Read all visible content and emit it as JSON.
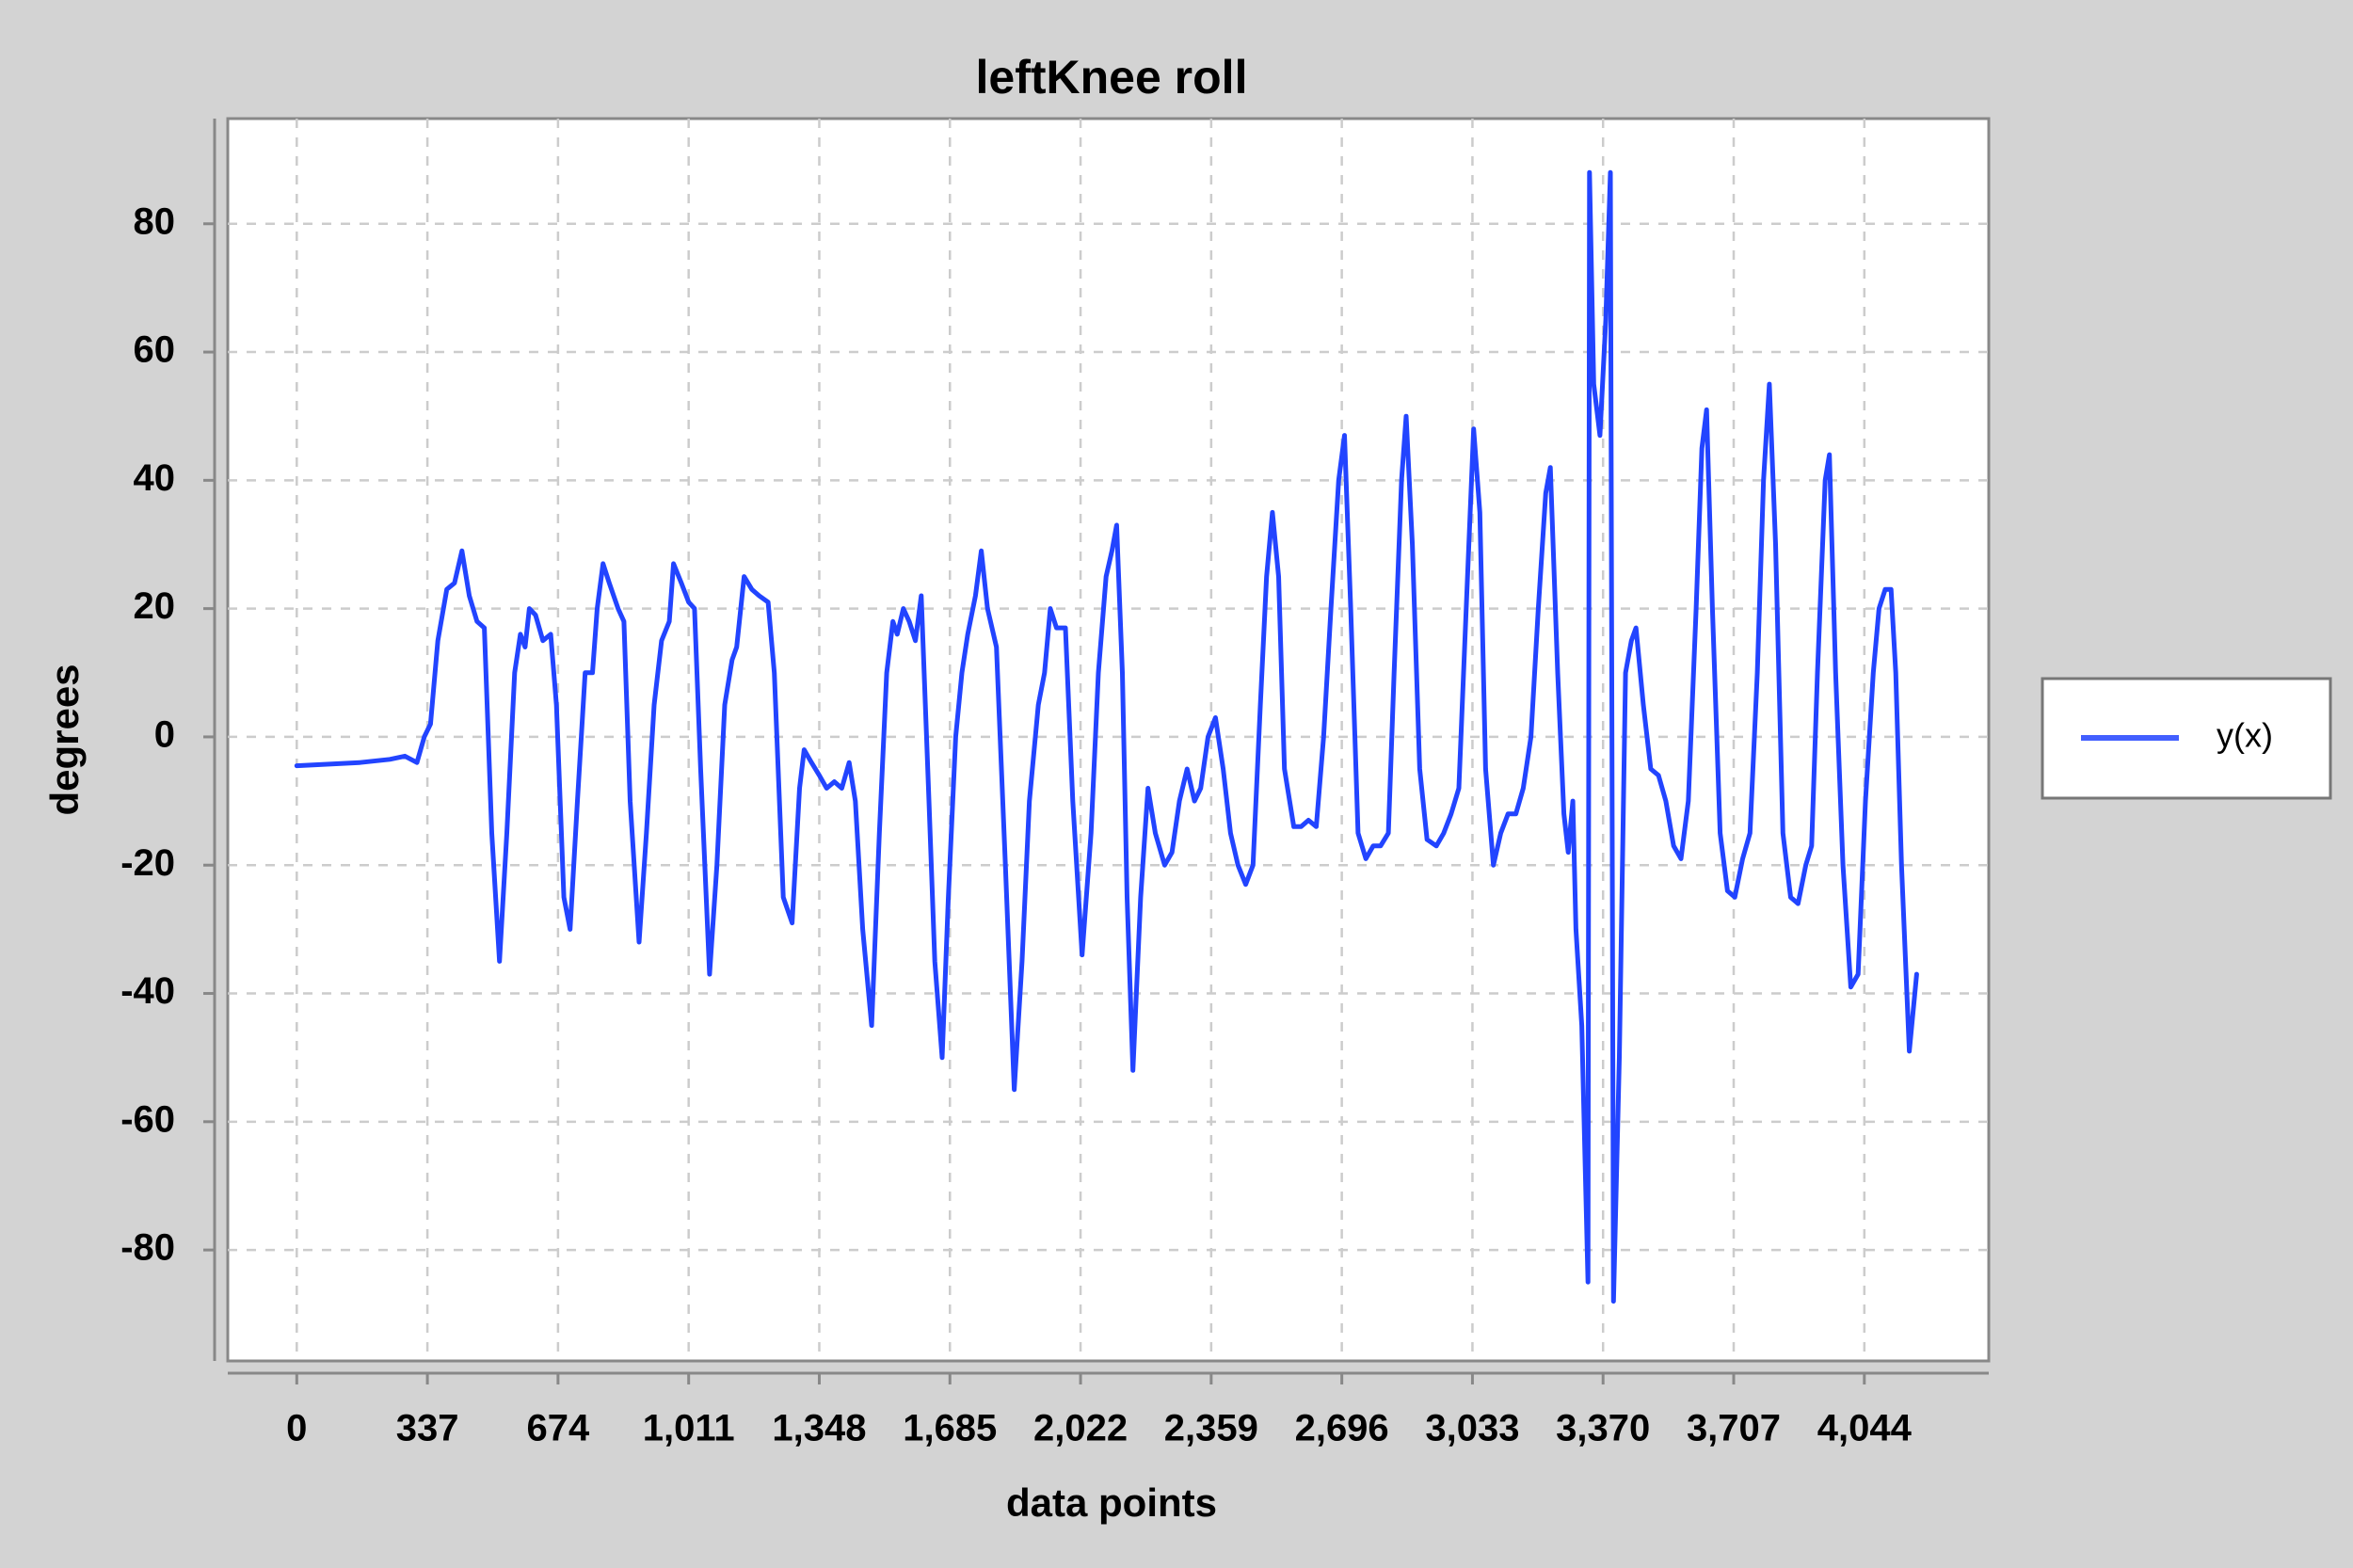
{
  "chart_data": {
    "type": "line",
    "title": "leftKnee roll",
    "x_label": "data points",
    "y_label": "degrees",
    "xlim": [
      -178,
      4365
    ],
    "ylim": [
      -97.3,
      96.4
    ],
    "xticks": [
      0,
      337,
      674,
      {
        "value": 1011,
        "label": "1,011"
      },
      {
        "value": 1348,
        "label": "1,348"
      },
      {
        "value": 1685,
        "label": "1,685"
      },
      {
        "value": 2022,
        "label": "2,022"
      },
      {
        "value": 2359,
        "label": "2,359"
      },
      {
        "value": 2696,
        "label": "2,696"
      },
      {
        "value": 3033,
        "label": "3,033"
      },
      {
        "value": 3370,
        "label": "3,370"
      },
      {
        "value": 3707,
        "label": "3,707"
      },
      {
        "value": 4044,
        "label": "4,044"
      }
    ],
    "yticks": [
      -80,
      -60,
      -40,
      -20,
      0,
      20,
      40,
      60,
      80
    ],
    "grid": true,
    "legend": "right",
    "series": [
      {
        "name": "y(x)",
        "color": "#2244ff",
        "x": [
          0,
          163,
          240,
          279,
          310,
          329,
          345,
          364,
          387,
          407,
          426,
          445,
          465,
          484,
          503,
          523,
          542,
          562,
          577,
          589,
          600,
          616,
          635,
          655,
          670,
          689,
          705,
          724,
          744,
          763,
          775,
          790,
          806,
          829,
          844,
          860,
          883,
          902,
          922,
          941,
          961,
          972,
          992,
          1011,
          1026,
          1042,
          1065,
          1084,
          1104,
          1123,
          1135,
          1154,
          1174,
          1193,
          1216,
          1232,
          1255,
          1278,
          1297,
          1309,
          1328,
          1348,
          1367,
          1387,
          1406,
          1425,
          1441,
          1460,
          1483,
          1503,
          1522,
          1538,
          1549,
          1565,
          1580,
          1596,
          1611,
          1631,
          1646,
          1665,
          1681,
          1700,
          1716,
          1731,
          1751,
          1766,
          1782,
          1805,
          1828,
          1851,
          1871,
          1890,
          1913,
          1929,
          1944,
          1960,
          1983,
          2002,
          2026,
          2049,
          2068,
          2088,
          2103,
          2115,
          2130,
          2142,
          2157,
          2177,
          2196,
          2215,
          2239,
          2258,
          2277,
          2297,
          2316,
          2332,
          2351,
          2370,
          2390,
          2409,
          2428,
          2448,
          2467,
          2486,
          2502,
          2517,
          2533,
          2548,
          2572,
          2591,
          2610,
          2630,
          2649,
          2668,
          2688,
          2703,
          2719,
          2738,
          2758,
          2777,
          2796,
          2816,
          2831,
          2850,
          2862,
          2878,
          2897,
          2916,
          2940,
          2959,
          2978,
          2998,
          3017,
          3036,
          3052,
          3067,
          3087,
          3106,
          3125,
          3145,
          3164,
          3184,
          3203,
          3222,
          3234,
          3253,
          3269,
          3280,
          3292,
          3300,
          3315,
          3331,
          3335,
          3346,
          3362,
          3377,
          3389,
          3397,
          3412,
          3428,
          3443,
          3455,
          3474,
          3493,
          3513,
          3532,
          3552,
          3571,
          3590,
          3610,
          3625,
          3637,
          3652,
          3672,
          3691,
          3710,
          3730,
          3749,
          3768,
          3784,
          3799,
          3815,
          3834,
          3854,
          3873,
          3893,
          3908,
          3923,
          3943,
          3954,
          3970,
          3989,
          4009,
          4028,
          4047,
          4067,
          4082,
          4098,
          4113,
          4125,
          4140,
          4160,
          4179
        ],
        "values": [
          -4.5,
          -4,
          -3.5,
          -3,
          -4,
          0,
          2,
          15,
          23,
          24,
          29,
          22,
          18,
          17,
          -15,
          -35,
          -15,
          10,
          16,
          14,
          20,
          19,
          15,
          16,
          5,
          -25,
          -30,
          -10,
          10,
          10,
          20,
          27,
          24,
          20,
          18,
          -10,
          -32,
          -15,
          5,
          15,
          18,
          27,
          24,
          21,
          20,
          -5,
          -37,
          -20,
          5,
          12,
          14,
          25,
          23,
          22,
          21,
          10,
          -25,
          -29,
          -8,
          -2,
          -4,
          -6,
          -8,
          -7,
          -8,
          -4,
          -10,
          -30,
          -45,
          -15,
          10,
          18,
          16,
          20,
          18,
          15,
          22,
          -10,
          -35,
          -50,
          -25,
          0,
          10,
          16,
          22,
          29,
          20,
          14,
          -20,
          -55,
          -35,
          -10,
          5,
          10,
          20,
          17,
          17,
          -10,
          -34,
          -15,
          10,
          25,
          29,
          33,
          10,
          -25,
          -52,
          -25,
          -8,
          -15,
          -20,
          -18,
          -10,
          -5,
          -10,
          -8,
          0,
          3,
          -5,
          -15,
          -20,
          -23,
          -20,
          5,
          25,
          35,
          25,
          -5,
          -14,
          -14,
          -13,
          -14,
          0,
          20,
          40,
          47,
          20,
          -15,
          -19,
          -17,
          -17,
          -15,
          10,
          40,
          50,
          30,
          -5,
          -16,
          -17,
          -15,
          -12,
          -8,
          20,
          48,
          35,
          -5,
          -20,
          -15,
          -12,
          -12,
          -8,
          0,
          20,
          38,
          42,
          10,
          -12,
          -18,
          -10,
          -30,
          -45,
          -85,
          88,
          55,
          47,
          65,
          88,
          -88,
          -50,
          10,
          15,
          17,
          5,
          -5,
          -6,
          -10,
          -17,
          -19,
          -10,
          20,
          45,
          51,
          20,
          -15,
          -24,
          -25,
          -19,
          -15,
          10,
          40,
          55,
          30,
          -15,
          -25,
          -26,
          -20,
          -17,
          10,
          40,
          44,
          10,
          -20,
          -39,
          -37,
          -10,
          10,
          20,
          23,
          23,
          10,
          -20,
          -49,
          -37
        ]
      }
    ]
  }
}
